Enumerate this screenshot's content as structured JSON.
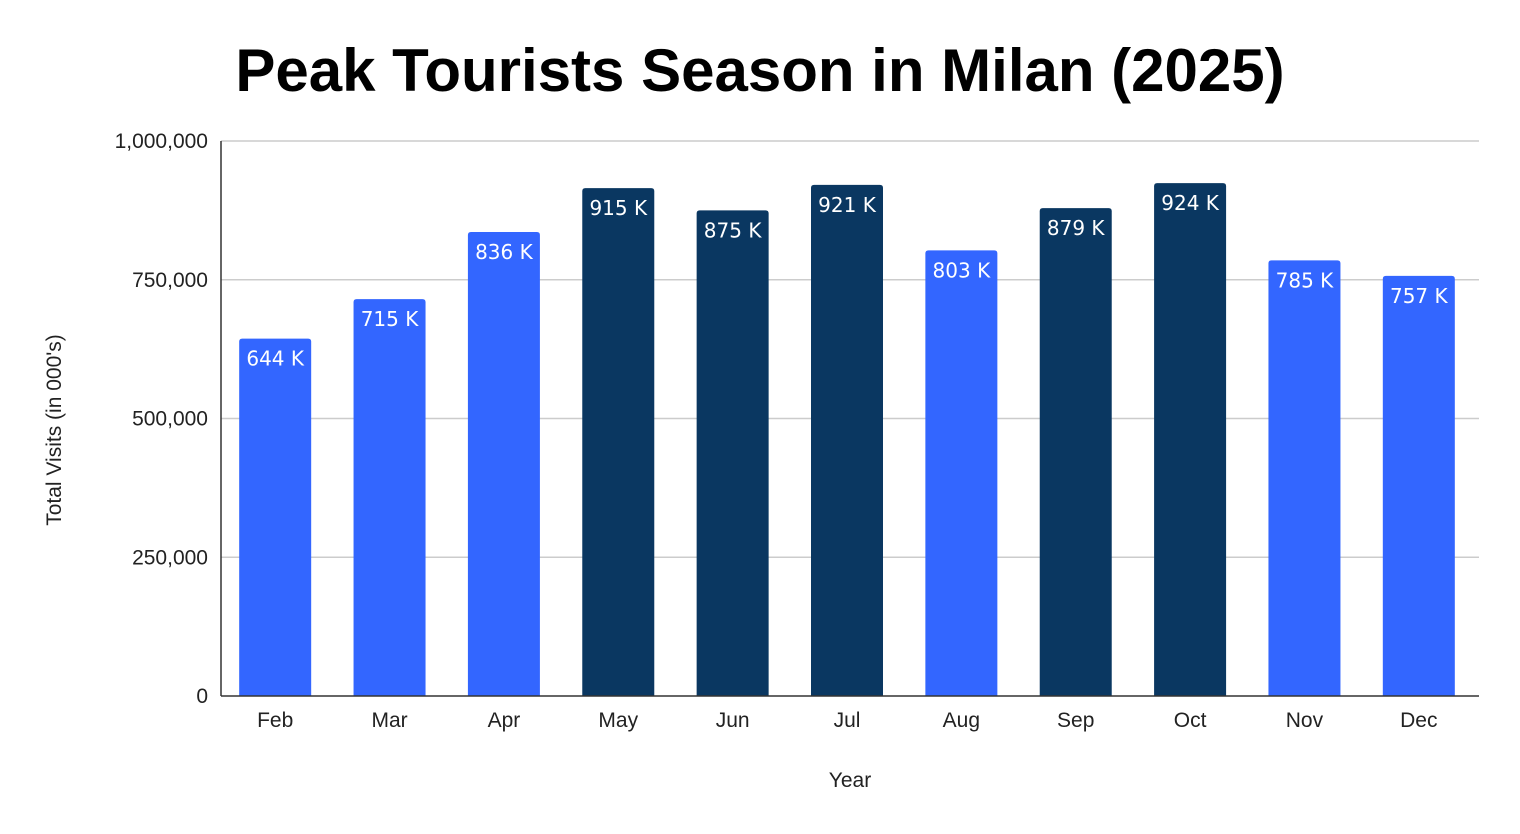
{
  "chart_data": {
    "type": "bar",
    "title": "Peak Tourists Season in Milan (2025)",
    "xlabel": "Year",
    "ylabel": "Total Visits (in 000's)",
    "ylim": [
      0,
      1000000
    ],
    "yticks": [
      0,
      250000,
      500000,
      750000,
      1000000
    ],
    "ytick_labels": [
      "0",
      "250,000",
      "500,000",
      "750,000",
      "1,000,000"
    ],
    "categories": [
      "Feb",
      "Mar",
      "Apr",
      "May",
      "Jun",
      "Jul",
      "Aug",
      "Sep",
      "Oct",
      "Nov",
      "Dec"
    ],
    "values": [
      644000,
      715000,
      836000,
      915000,
      875000,
      921000,
      803000,
      879000,
      924000,
      785000,
      757000
    ],
    "data_labels": [
      "644 K",
      "715 K",
      "836 K",
      "915 K",
      "875 K",
      "921 K",
      "803 K",
      "879 K",
      "924 K",
      "785 K",
      "757 K"
    ],
    "peak": [
      false,
      false,
      false,
      true,
      true,
      true,
      false,
      true,
      true,
      false,
      false
    ],
    "grid": true,
    "colors": {
      "regular": "#3366ff",
      "peak": "#0a3761",
      "grid": "#cccccc",
      "axis": "#333333"
    }
  }
}
